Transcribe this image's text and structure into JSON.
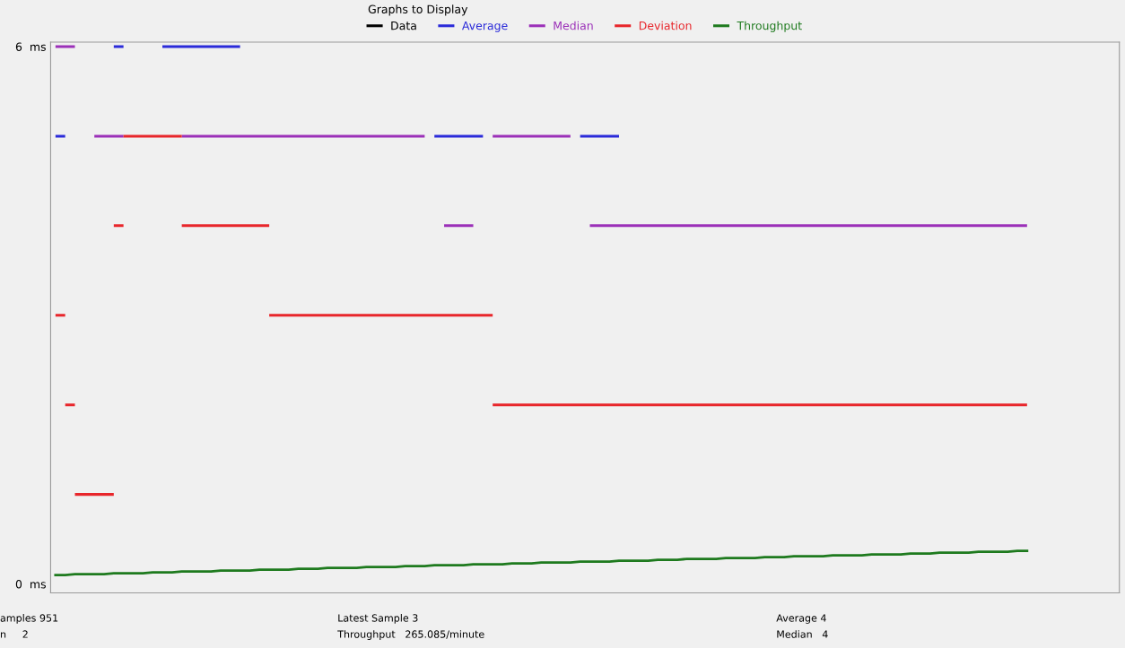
{
  "chart_data": {
    "type": "step",
    "legend_title": "Graphs to Display",
    "legend": "top",
    "categories": [
      null,
      null,
      null,
      null,
      null,
      null,
      null,
      null,
      null,
      null,
      null,
      null,
      null,
      null,
      null,
      null,
      null,
      null,
      null,
      null,
      null,
      null,
      null,
      null,
      null,
      null,
      null,
      null,
      null,
      null,
      null,
      null,
      null,
      null,
      null,
      null,
      null,
      null,
      null,
      null,
      null,
      null,
      null,
      null,
      null,
      null,
      null,
      null,
      null,
      null,
      null,
      null,
      null,
      null,
      null,
      null,
      null,
      null,
      null,
      null,
      null,
      null,
      null,
      null,
      null,
      null,
      null,
      null,
      null,
      null,
      null,
      null,
      null,
      null,
      null,
      null,
      null,
      null,
      null,
      null,
      null,
      null,
      null,
      null,
      null,
      null,
      null,
      null,
      null,
      null,
      null,
      null,
      null,
      null,
      null,
      null,
      null,
      null,
      null,
      null,
      null
    ],
    "ylim": [
      -0.1,
      6.05
    ],
    "yticks": [
      {
        "value": 0,
        "label": "0  ms"
      },
      {
        "value": 6,
        "label": "6  ms"
      }
    ],
    "tick_labels": "y",
    "grid": false,
    "series": [
      {
        "name": "Data",
        "color": "#000000",
        "values": [
          null,
          null,
          null,
          null,
          null,
          null,
          null,
          null,
          null,
          null,
          null,
          null,
          null,
          null,
          null,
          null,
          null,
          null,
          null,
          null,
          null,
          null,
          null,
          null,
          null,
          null,
          null,
          null,
          null,
          null,
          null,
          null,
          null,
          null,
          null,
          null,
          null,
          null,
          null,
          null,
          null,
          null,
          null,
          null,
          null,
          null,
          null,
          null,
          null,
          null,
          null,
          null,
          null,
          null,
          null,
          null,
          null,
          null,
          null,
          null,
          null,
          null,
          null,
          null,
          null,
          null,
          null,
          null,
          null,
          null,
          null,
          null,
          null,
          null,
          null,
          null,
          null,
          null,
          null,
          null,
          null,
          null,
          null,
          null,
          null,
          null,
          null,
          null,
          null,
          null,
          null,
          null,
          null,
          null,
          null,
          null,
          null,
          null,
          null,
          null,
          null
        ]
      },
      {
        "name": "Average",
        "color": "#2b2bd9",
        "values": [
          5,
          5,
          null,
          null,
          null,
          null,
          6,
          6,
          null,
          null,
          null,
          6,
          6,
          6,
          6,
          6,
          6,
          6,
          6,
          6,
          null,
          null,
          null,
          null,
          null,
          null,
          null,
          null,
          null,
          null,
          null,
          null,
          null,
          null,
          null,
          null,
          null,
          null,
          null,
          5,
          5,
          5,
          5,
          5,
          5,
          null,
          null,
          null,
          null,
          null,
          null,
          null,
          null,
          null,
          5,
          5,
          5,
          5,
          5,
          null,
          null,
          null,
          null,
          null,
          null,
          null,
          null,
          null,
          null,
          null,
          null,
          null,
          null,
          null,
          null,
          null,
          null,
          null,
          null,
          null,
          null,
          null,
          null,
          null,
          null,
          null,
          null,
          null,
          null,
          null,
          null,
          null,
          null,
          null,
          null,
          null,
          null,
          null,
          null,
          null,
          null
        ]
      },
      {
        "name": "Median",
        "color": "#9b30b8",
        "values": [
          6,
          6,
          6,
          null,
          5,
          5,
          5,
          5,
          null,
          null,
          null,
          null,
          null,
          5,
          5,
          5,
          5,
          5,
          5,
          5,
          5,
          5,
          5,
          5,
          5,
          5,
          5,
          5,
          5,
          5,
          5,
          5,
          5,
          5,
          5,
          5,
          5,
          5,
          5,
          null,
          4,
          4,
          4,
          4,
          null,
          5,
          5,
          5,
          5,
          5,
          5,
          5,
          5,
          5,
          null,
          4,
          4,
          4,
          4,
          4,
          4,
          4,
          4,
          4,
          4,
          4,
          4,
          4,
          4,
          4,
          4,
          4,
          4,
          4,
          4,
          4,
          4,
          4,
          4,
          4,
          4,
          4,
          4,
          4,
          4,
          4,
          4,
          4,
          4,
          4,
          4,
          4,
          4,
          4,
          4,
          4,
          4,
          4,
          4,
          4,
          4
        ]
      },
      {
        "name": "Deviation",
        "color": "#e8262b",
        "values": [
          3,
          2,
          1,
          1,
          1,
          1,
          4,
          5,
          5,
          5,
          5,
          5,
          5,
          4,
          4,
          4,
          4,
          4,
          4,
          4,
          4,
          4,
          3,
          3,
          3,
          3,
          3,
          3,
          3,
          3,
          3,
          3,
          3,
          3,
          3,
          3,
          3,
          3,
          3,
          3,
          3,
          3,
          3,
          3,
          3,
          2,
          2,
          2,
          2,
          2,
          2,
          2,
          2,
          2,
          2,
          2,
          2,
          2,
          2,
          2,
          2,
          2,
          2,
          2,
          2,
          2,
          2,
          2,
          2,
          2,
          2,
          2,
          2,
          2,
          2,
          2,
          2,
          2,
          2,
          2,
          2,
          2,
          2,
          2,
          2,
          2,
          2,
          2,
          2,
          2,
          2,
          2,
          2,
          2,
          2,
          2,
          2,
          2,
          2,
          2,
          2
        ]
      },
      {
        "name": "Throughput",
        "color": "#1e7a1e",
        "type": "line",
        "values": [
          0.1,
          0.1,
          0.11,
          0.11,
          0.11,
          0.11,
          0.12,
          0.12,
          0.12,
          0.12,
          0.13,
          0.13,
          0.13,
          0.14,
          0.14,
          0.14,
          0.14,
          0.15,
          0.15,
          0.15,
          0.15,
          0.16,
          0.16,
          0.16,
          0.16,
          0.17,
          0.17,
          0.17,
          0.18,
          0.18,
          0.18,
          0.18,
          0.19,
          0.19,
          0.19,
          0.19,
          0.2,
          0.2,
          0.2,
          0.21,
          0.21,
          0.21,
          0.21,
          0.22,
          0.22,
          0.22,
          0.22,
          0.23,
          0.23,
          0.23,
          0.24,
          0.24,
          0.24,
          0.24,
          0.25,
          0.25,
          0.25,
          0.25,
          0.26,
          0.26,
          0.26,
          0.26,
          0.27,
          0.27,
          0.27,
          0.28,
          0.28,
          0.28,
          0.28,
          0.29,
          0.29,
          0.29,
          0.29,
          0.3,
          0.3,
          0.3,
          0.31,
          0.31,
          0.31,
          0.31,
          0.32,
          0.32,
          0.32,
          0.32,
          0.33,
          0.33,
          0.33,
          0.33,
          0.34,
          0.34,
          0.34,
          0.35,
          0.35,
          0.35,
          0.35,
          0.36,
          0.36,
          0.36,
          0.36,
          0.37,
          0.37
        ]
      }
    ],
    "annotations": [
      "amples 951",
      "Latest Sample 3",
      "Average 4",
      "n     2",
      "Throughput   265.085/minute",
      "Median   4"
    ]
  }
}
